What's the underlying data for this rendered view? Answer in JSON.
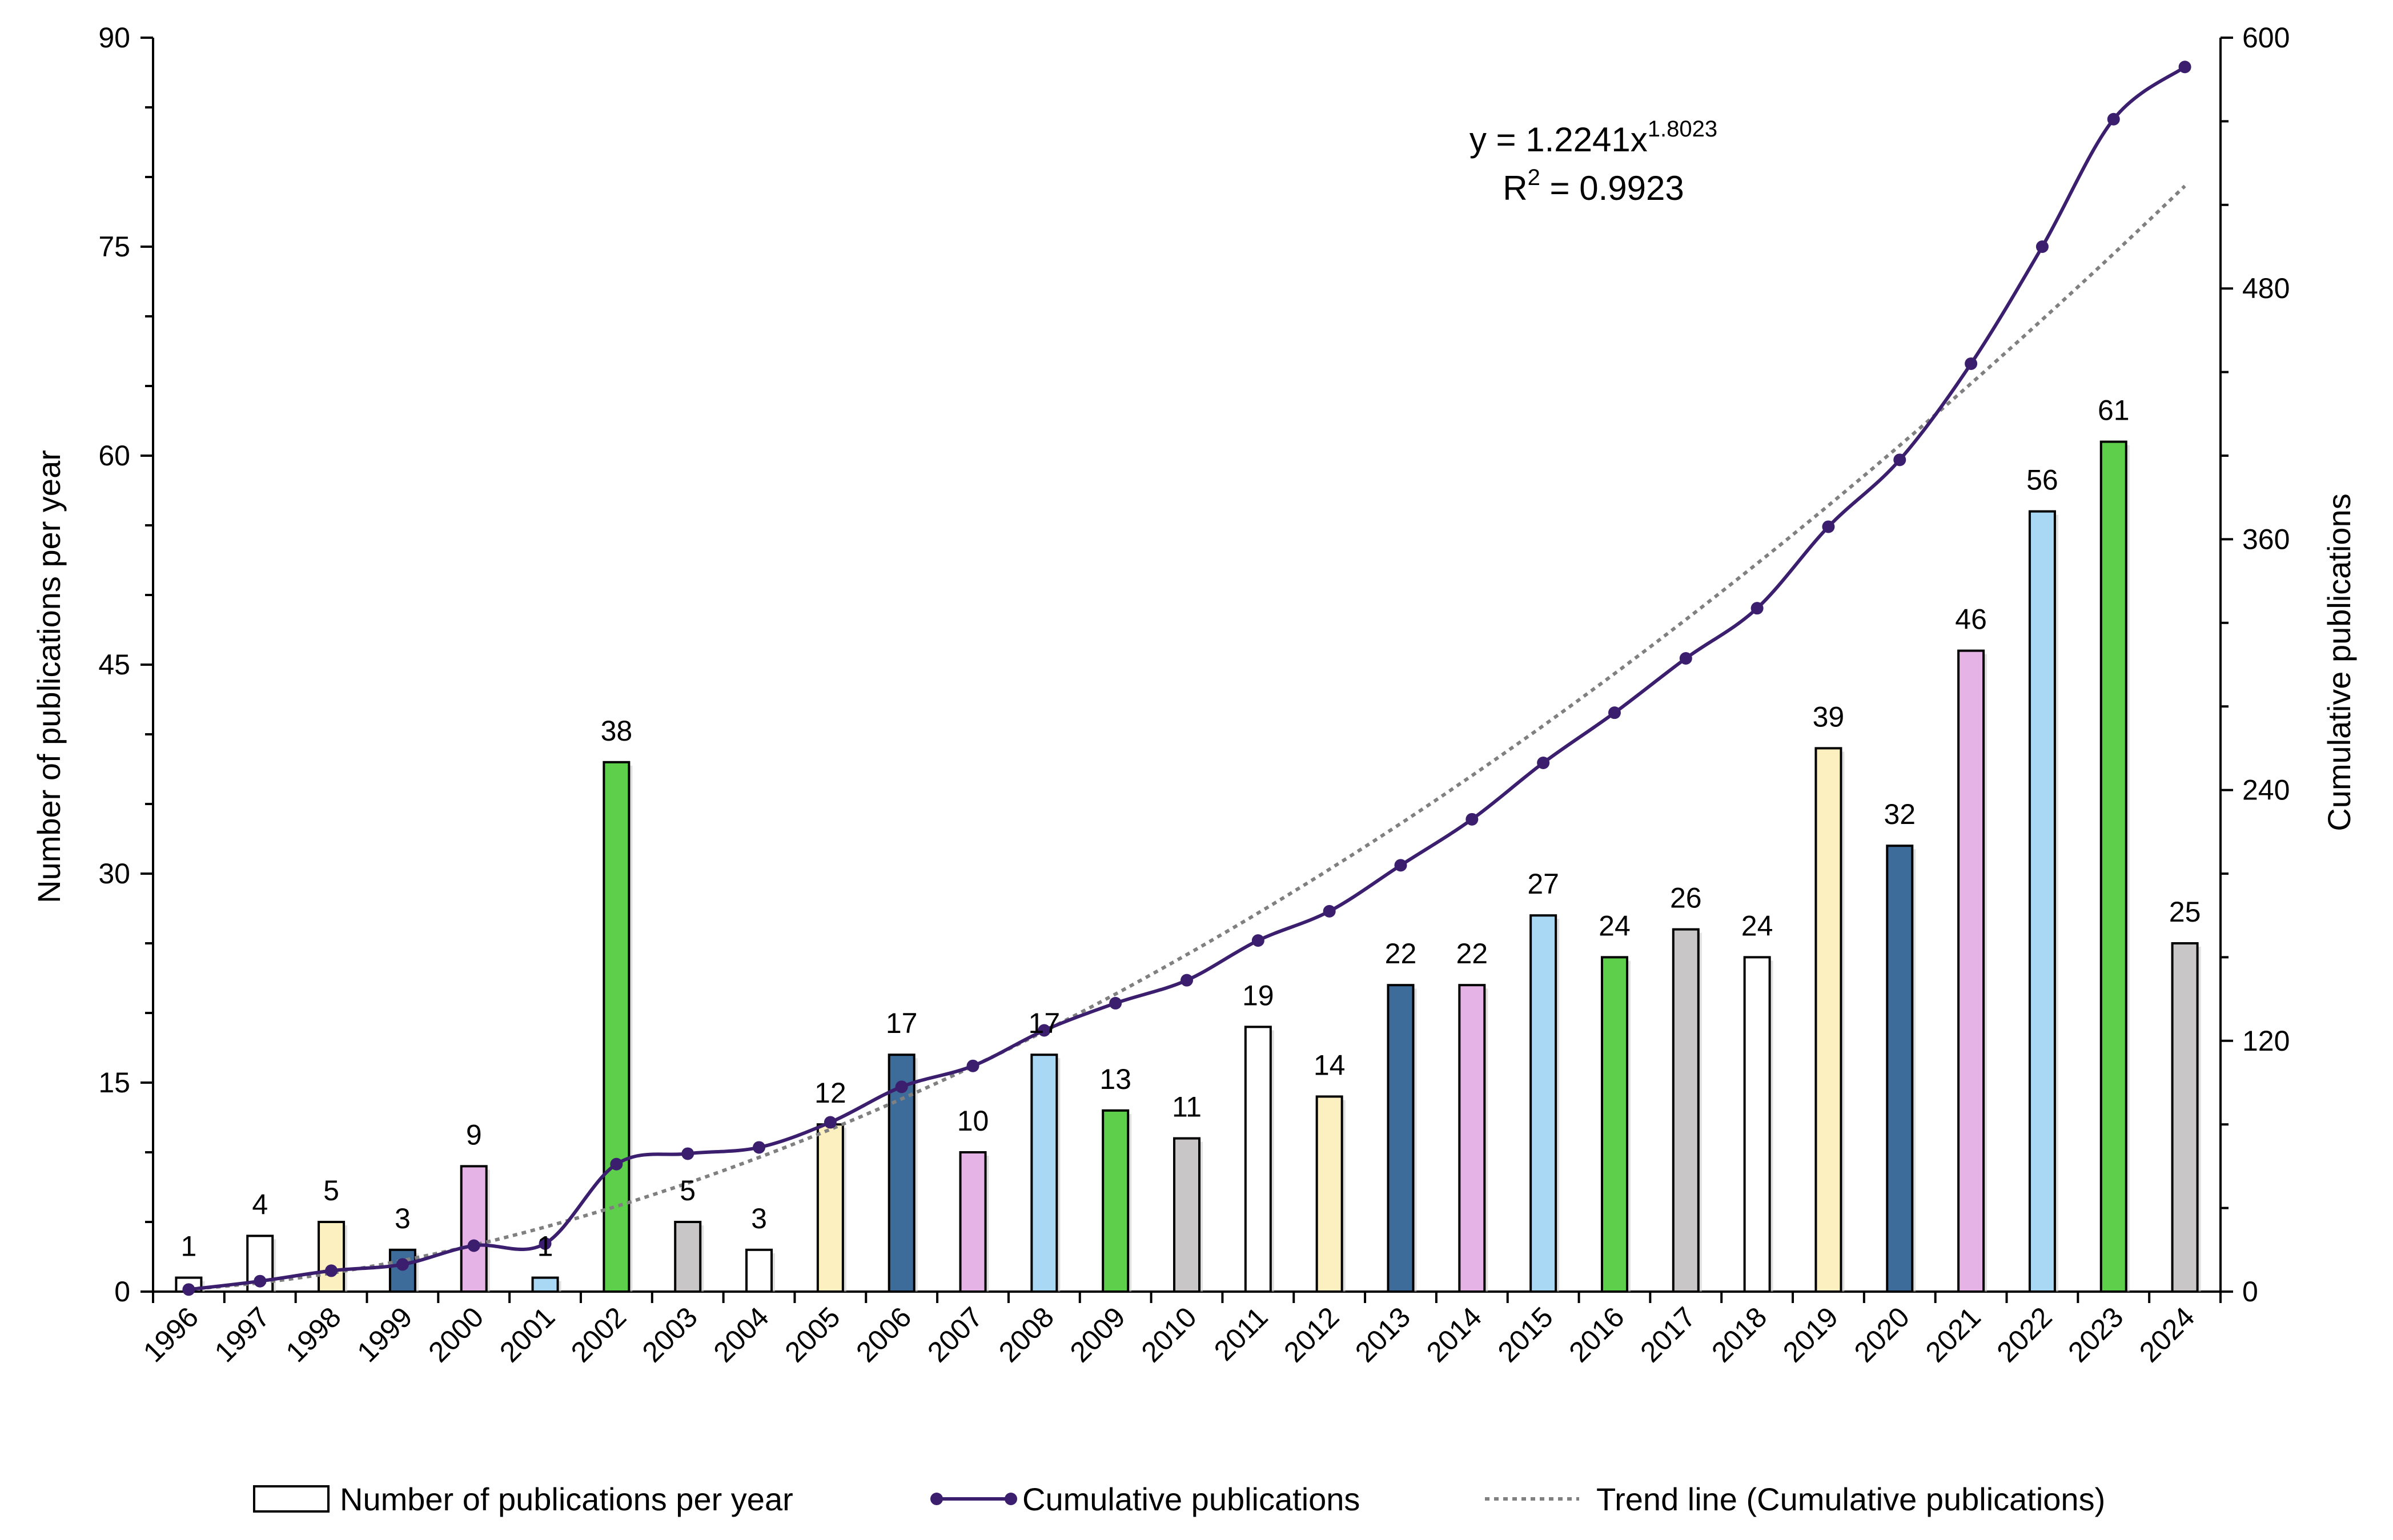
{
  "chart_data": {
    "type": "bar",
    "title": "",
    "xlabel": "",
    "ylabel": "Number of publications per year",
    "y2label": "Cumulative publications",
    "ylim": [
      0,
      90
    ],
    "y2lim": [
      0,
      600
    ],
    "yticks": [
      "0",
      "15",
      "30",
      "45",
      "60",
      "75",
      "90"
    ],
    "y2ticks": [
      "0",
      "120",
      "240",
      "360",
      "480",
      "600"
    ],
    "categories": [
      "1996",
      "1997",
      "1998",
      "1999",
      "2000",
      "2001",
      "2002",
      "2003",
      "2004",
      "2005",
      "2006",
      "2007",
      "2008",
      "2009",
      "2010",
      "2011",
      "2012",
      "2013",
      "2014",
      "2015",
      "2016",
      "2017",
      "2018",
      "2019",
      "2020",
      "2021",
      "2022",
      "2023",
      "2024"
    ],
    "series": [
      {
        "name": "Number of publications per year",
        "type": "bar",
        "axis": "left",
        "values": [
          1,
          4,
          5,
          3,
          9,
          1,
          38,
          5,
          3,
          12,
          17,
          10,
          17,
          13,
          11,
          19,
          14,
          22,
          22,
          27,
          24,
          26,
          24,
          39,
          32,
          46,
          56,
          61,
          25
        ],
        "labels": [
          "1",
          "4",
          "5",
          "3",
          "9",
          "1",
          "38",
          "5",
          "3",
          "12",
          "17",
          "10",
          "17",
          "13",
          "11",
          "19",
          "14",
          "22",
          "22",
          "27",
          "24",
          "26",
          "24",
          "39",
          "32",
          "46",
          "56",
          "61",
          "25"
        ],
        "colors": [
          "#ffffff",
          "#ffffff",
          "#fdf0c0",
          "#3d6b9a",
          "#e6b3e6",
          "#a9d8f5",
          "#5ecf4a",
          "#c8c6c6",
          "#ffffff",
          "#fdf0c0",
          "#3d6b9a",
          "#e6b3e6",
          "#a9d8f5",
          "#5ecf4a",
          "#c8c6c6",
          "#ffffff",
          "#fdf0c0",
          "#3d6b9a",
          "#e6b3e6",
          "#a9d8f5",
          "#5ecf4a",
          "#c8c6c6",
          "#ffffff",
          "#fdf0c0",
          "#3d6b9a",
          "#e6b3e6",
          "#a9d8f5",
          "#5ecf4a",
          "#c8c6c6"
        ]
      },
      {
        "name": "Cumulative publications",
        "type": "line",
        "axis": "right",
        "color": "#3b1f6e",
        "values": [
          1,
          5,
          10,
          13,
          22,
          23,
          61,
          66,
          69,
          81,
          98,
          108,
          125,
          138,
          149,
          168,
          182,
          204,
          226,
          253,
          277,
          303,
          327,
          366,
          398,
          444,
          500,
          561,
          586
        ]
      },
      {
        "name": "Trend line (Cumulative publications)",
        "type": "trend",
        "axis": "right",
        "color": "#808080",
        "equation": "y = 1.2241x",
        "exponent": "1.8023",
        "coef": 1.2241,
        "power": 1.8023,
        "r2_prefix": "R",
        "r2_sup": "2",
        "r2_suffix": " = 0.9923"
      }
    ],
    "legend": {
      "position": "bottom",
      "items": [
        "Number of publications per year",
        "Cumulative publications",
        "Trend line (Cumulative publications)"
      ]
    }
  }
}
